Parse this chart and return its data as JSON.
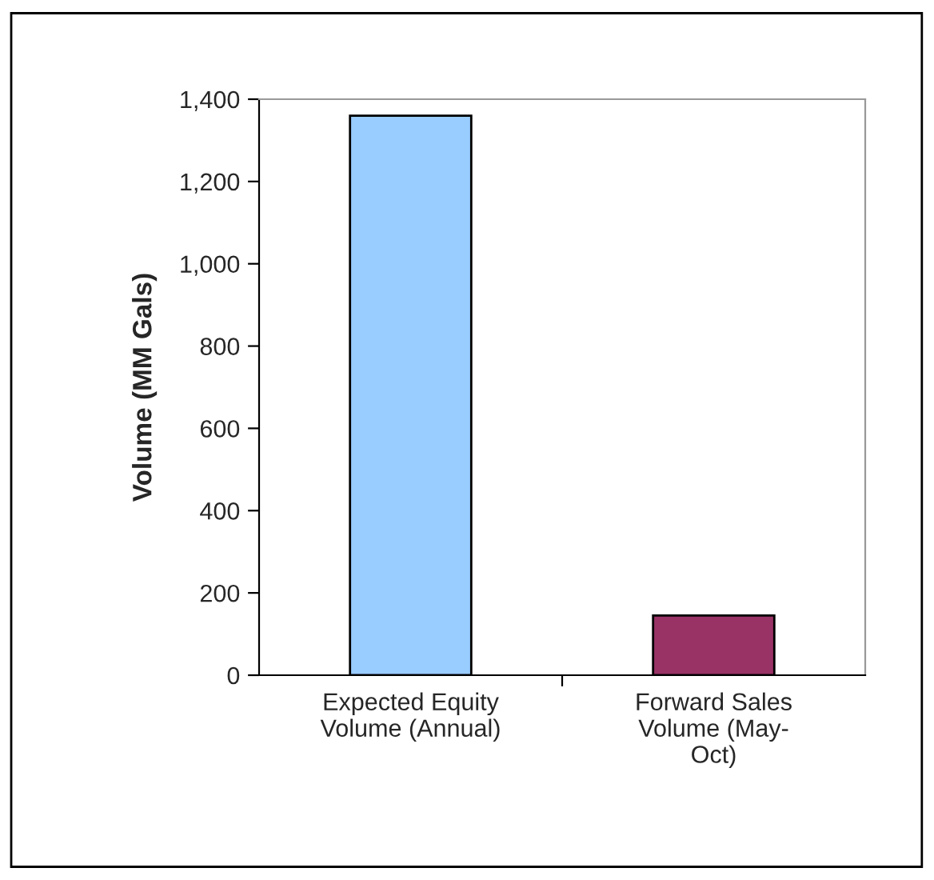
{
  "chart_data": {
    "type": "bar",
    "ylabel": "Volume (MM Gals)",
    "categories": [
      "Expected Equity\nVolume (Annual)",
      "Forward Sales\nVolume (May-\nOct)"
    ],
    "values": [
      1360,
      145
    ],
    "colors": [
      "#99ccff",
      "#993366"
    ],
    "ylim": [
      0,
      1400
    ],
    "yticks": [
      0,
      200,
      400,
      600,
      800,
      {
        "value": 1000,
        "label": "1,000"
      },
      {
        "value": 1200,
        "label": "1,200"
      },
      {
        "value": 1400,
        "label": "1,400"
      }
    ],
    "grid": false,
    "legend": false
  }
}
